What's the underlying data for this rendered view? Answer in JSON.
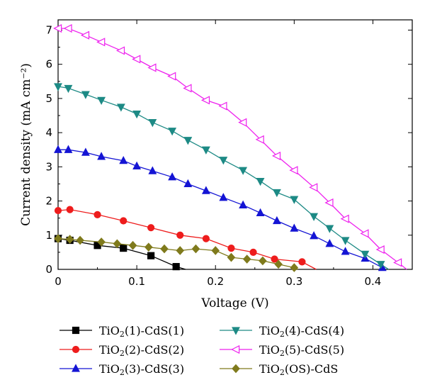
{
  "chart_data": {
    "type": "line",
    "xlabel": "Voltage (V)",
    "ylabel": "Current density (mA cm⁻²)",
    "xlim": [
      0,
      0.45
    ],
    "ylim": [
      0,
      7.3
    ],
    "xticks": [
      "0",
      "0.1",
      "0.2",
      "0.3",
      "0.4"
    ],
    "yticks": [
      "0",
      "1",
      "2",
      "3",
      "4",
      "5",
      "6",
      "7"
    ],
    "grid": false,
    "legend_position": "bottom",
    "series": [
      {
        "name": "TiO2(1)-CdS(1)",
        "legend_parts": [
          "TiO",
          "2",
          "(1)-CdS(1)"
        ],
        "color": "#000000",
        "marker": "square",
        "x": [
          0.0,
          0.015,
          0.05,
          0.083,
          0.118,
          0.15,
          0.162
        ],
        "y": [
          0.9,
          0.85,
          0.7,
          0.62,
          0.4,
          0.08,
          0.0
        ]
      },
      {
        "name": "TiO2(2)-CdS(2)",
        "legend_parts": [
          "TiO",
          "2",
          "(2)-CdS(2)"
        ],
        "color": "#ee1c1c",
        "marker": "circle",
        "x": [
          0.0,
          0.015,
          0.05,
          0.083,
          0.118,
          0.155,
          0.188,
          0.22,
          0.248,
          0.275,
          0.31,
          0.328
        ],
        "y": [
          1.72,
          1.75,
          1.6,
          1.42,
          1.22,
          1.0,
          0.9,
          0.62,
          0.5,
          0.3,
          0.22,
          0.0
        ]
      },
      {
        "name": "TiO2(3)-CdS(3)",
        "legend_parts": [
          "TiO",
          "2",
          "(3)-CdS(3)"
        ],
        "color": "#1414d4",
        "marker": "triangle-up",
        "x": [
          0.0,
          0.013,
          0.035,
          0.055,
          0.083,
          0.1,
          0.12,
          0.145,
          0.165,
          0.188,
          0.21,
          0.235,
          0.257,
          0.278,
          0.3,
          0.325,
          0.345,
          0.365,
          0.39,
          0.412
        ],
        "y": [
          3.5,
          3.5,
          3.42,
          3.3,
          3.18,
          3.02,
          2.88,
          2.7,
          2.5,
          2.3,
          2.1,
          1.88,
          1.65,
          1.42,
          1.2,
          0.98,
          0.75,
          0.52,
          0.32,
          0.05
        ]
      },
      {
        "name": "TiO2(4)-CdS(4)",
        "legend_parts": [
          "TiO",
          "2",
          "(4)-CdS(4)"
        ],
        "color": "#1d8a85",
        "marker": "triangle-down",
        "x": [
          0.0,
          0.013,
          0.035,
          0.055,
          0.08,
          0.1,
          0.12,
          0.145,
          0.165,
          0.188,
          0.21,
          0.235,
          0.257,
          0.278,
          0.3,
          0.325,
          0.345,
          0.365,
          0.39,
          0.41,
          0.42
        ],
        "y": [
          5.35,
          5.3,
          5.12,
          4.95,
          4.75,
          4.55,
          4.3,
          4.05,
          3.78,
          3.5,
          3.2,
          2.9,
          2.58,
          2.25,
          2.05,
          1.55,
          1.2,
          0.85,
          0.45,
          0.15,
          0.0
        ]
      },
      {
        "name": "TiO2(5)-CdS(5)",
        "legend_parts": [
          "TiO",
          "2",
          "(5)-CdS(5)"
        ],
        "color": "#ee22ee",
        "marker": "triangle-left",
        "x": [
          0.0,
          0.013,
          0.035,
          0.055,
          0.08,
          0.1,
          0.12,
          0.145,
          0.165,
          0.188,
          0.21,
          0.235,
          0.257,
          0.278,
          0.3,
          0.325,
          0.345,
          0.365,
          0.39,
          0.41,
          0.432,
          0.443
        ],
        "y": [
          7.05,
          7.05,
          6.85,
          6.65,
          6.4,
          6.15,
          5.9,
          5.65,
          5.3,
          4.95,
          4.78,
          4.3,
          3.8,
          3.32,
          2.9,
          2.4,
          1.95,
          1.48,
          1.05,
          0.58,
          0.2,
          0.0
        ]
      },
      {
        "name": "TiO2(OS)-CdS",
        "legend_parts": [
          "TiO",
          "2",
          "(OS)-CdS"
        ],
        "color": "#7f7a1c",
        "marker": "diamond",
        "x": [
          0.0,
          0.015,
          0.028,
          0.055,
          0.075,
          0.095,
          0.115,
          0.135,
          0.155,
          0.175,
          0.2,
          0.22,
          0.24,
          0.26,
          0.28,
          0.3,
          0.305
        ],
        "y": [
          0.9,
          0.88,
          0.85,
          0.8,
          0.75,
          0.7,
          0.65,
          0.6,
          0.55,
          0.6,
          0.55,
          0.35,
          0.3,
          0.25,
          0.15,
          0.05,
          0.0
        ]
      }
    ]
  }
}
